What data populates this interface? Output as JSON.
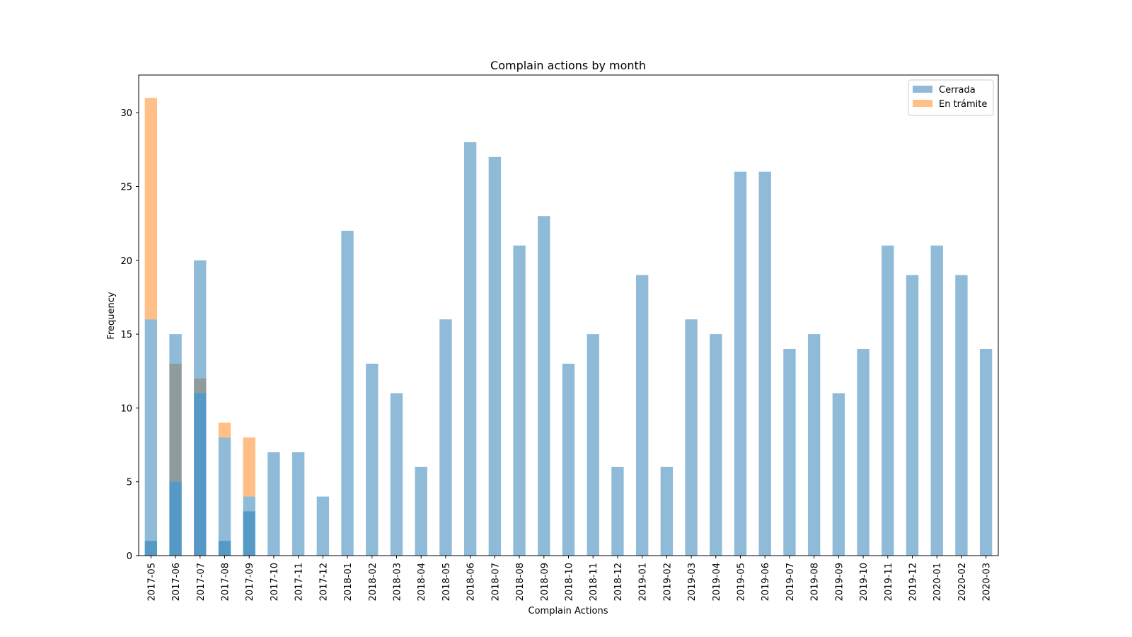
{
  "chart_data": {
    "type": "bar",
    "title": "Complain actions by month",
    "xlabel": "Complain Actions",
    "ylabel": "Frequency",
    "categories": [
      "2017-05",
      "2017-06",
      "2017-07",
      "2017-08",
      "2017-09",
      "2017-10",
      "2017-11",
      "2017-12",
      "2018-01",
      "2018-02",
      "2018-03",
      "2018-04",
      "2018-05",
      "2018-06",
      "2018-07",
      "2018-08",
      "2018-09",
      "2018-10",
      "2018-11",
      "2018-12",
      "2019-01",
      "2019-02",
      "2019-03",
      "2019-04",
      "2019-05",
      "2019-06",
      "2019-07",
      "2019-08",
      "2019-09",
      "2019-10",
      "2019-11",
      "2019-12",
      "2020-01",
      "2020-02",
      "2020-03"
    ],
    "series": [
      {
        "name": "Cerrada",
        "color": "#1f77b4",
        "values": [
          16,
          5,
          11,
          8,
          4,
          7,
          7,
          4,
          22,
          13,
          11,
          6,
          16,
          28,
          27,
          21,
          23,
          13,
          15,
          6,
          19,
          6,
          16,
          15,
          26,
          26,
          14,
          15,
          11,
          14,
          21,
          19,
          21,
          19,
          14
        ]
      },
      {
        "name": "En trámite",
        "color": "#ff7f0e",
        "stacked": true,
        "values": [
          15,
          8,
          1,
          1,
          4,
          null,
          null,
          null,
          null,
          null,
          null,
          null,
          null,
          null,
          null,
          null,
          null,
          null,
          null,
          null,
          null,
          null,
          null,
          null,
          null,
          null,
          null,
          null,
          null,
          null,
          null,
          null,
          null,
          null,
          null
        ]
      },
      {
        "color": "#1f77b4",
        "values": [
          1,
          15,
          20,
          1,
          3,
          null,
          null,
          null,
          null,
          null,
          null,
          null,
          null,
          null,
          null,
          null,
          null,
          null,
          null,
          null,
          null,
          null,
          null,
          null,
          null,
          null,
          null,
          null,
          null,
          null,
          null,
          null,
          null,
          null,
          null
        ]
      }
    ],
    "opacity": 0.5,
    "ylim": [
      0,
      32.55
    ],
    "yticks": [
      0,
      5,
      10,
      15,
      20,
      25,
      30
    ],
    "legend": "upper right"
  }
}
